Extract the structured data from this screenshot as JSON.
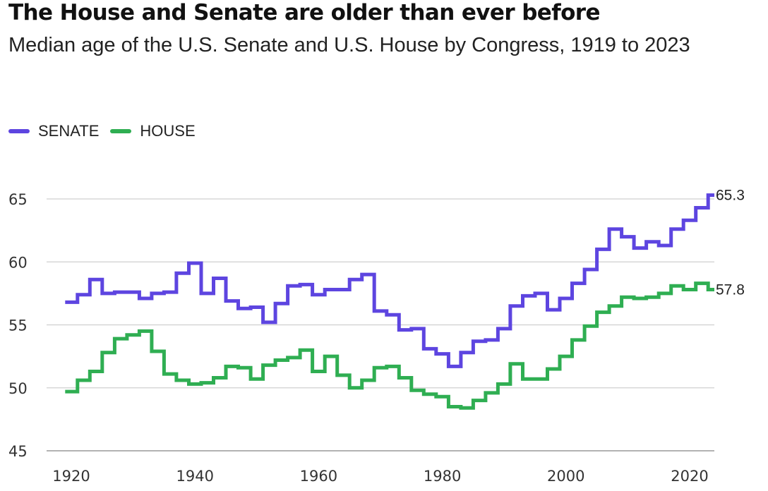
{
  "title": "The House and Senate are older than ever before",
  "subtitle": "Median age of the U.S. Senate and U.S. House by Congress, 1919 to 2023",
  "legend": {
    "senate": {
      "label": "SENATE",
      "color": "#5d45e0"
    },
    "house": {
      "label": "HOUSE",
      "color": "#2fae52"
    }
  },
  "chart_data": {
    "type": "line",
    "step": true,
    "title": "The House and Senate are older than ever before",
    "subtitle": "Median age of the U.S. Senate and U.S. House by Congress, 1919 to 2023",
    "xlabel": "",
    "ylabel": "",
    "xlim": [
      1916,
      2024
    ],
    "ylim": [
      45,
      65
    ],
    "xticks": [
      1920,
      1940,
      1960,
      1980,
      2000,
      2020
    ],
    "yticks": [
      45,
      50,
      55,
      60,
      65
    ],
    "grid": true,
    "legend_position": "top-left",
    "x": [
      1919,
      1921,
      1923,
      1925,
      1927,
      1929,
      1931,
      1933,
      1935,
      1937,
      1939,
      1941,
      1943,
      1945,
      1947,
      1949,
      1951,
      1953,
      1955,
      1957,
      1959,
      1961,
      1963,
      1965,
      1967,
      1969,
      1971,
      1973,
      1975,
      1977,
      1979,
      1981,
      1983,
      1985,
      1987,
      1989,
      1991,
      1993,
      1995,
      1997,
      1999,
      2001,
      2003,
      2005,
      2007,
      2009,
      2011,
      2013,
      2015,
      2017,
      2019,
      2021,
      2023
    ],
    "series": [
      {
        "name": "SENATE",
        "color": "#5d45e0",
        "end_label": "65.3",
        "values": [
          56.8,
          57.4,
          58.6,
          57.5,
          57.6,
          57.6,
          57.1,
          57.5,
          57.6,
          59.1,
          59.9,
          57.5,
          58.7,
          56.9,
          56.3,
          56.4,
          55.2,
          56.7,
          58.1,
          58.2,
          57.4,
          57.8,
          57.8,
          58.6,
          59.0,
          56.1,
          55.8,
          54.6,
          54.7,
          53.1,
          52.7,
          51.7,
          52.8,
          53.7,
          53.8,
          54.7,
          56.5,
          57.3,
          57.5,
          56.2,
          57.1,
          58.3,
          59.4,
          61.0,
          62.6,
          62.0,
          61.1,
          61.6,
          61.3,
          62.6,
          63.3,
          64.3,
          65.3
        ]
      },
      {
        "name": "HOUSE",
        "color": "#2fae52",
        "end_label": "57.8",
        "values": [
          49.7,
          50.6,
          51.3,
          52.8,
          53.9,
          54.2,
          54.5,
          52.9,
          51.1,
          50.6,
          50.3,
          50.4,
          50.8,
          51.7,
          51.6,
          50.7,
          51.8,
          52.2,
          52.4,
          53.0,
          51.3,
          52.5,
          51.0,
          50.0,
          50.6,
          51.6,
          51.7,
          50.8,
          49.8,
          49.5,
          49.3,
          48.5,
          48.4,
          49.0,
          49.6,
          50.3,
          51.9,
          50.7,
          50.7,
          51.5,
          52.5,
          53.8,
          54.9,
          56.0,
          56.5,
          57.2,
          57.1,
          57.2,
          57.5,
          58.1,
          57.8,
          58.3,
          57.8
        ]
      }
    ]
  }
}
